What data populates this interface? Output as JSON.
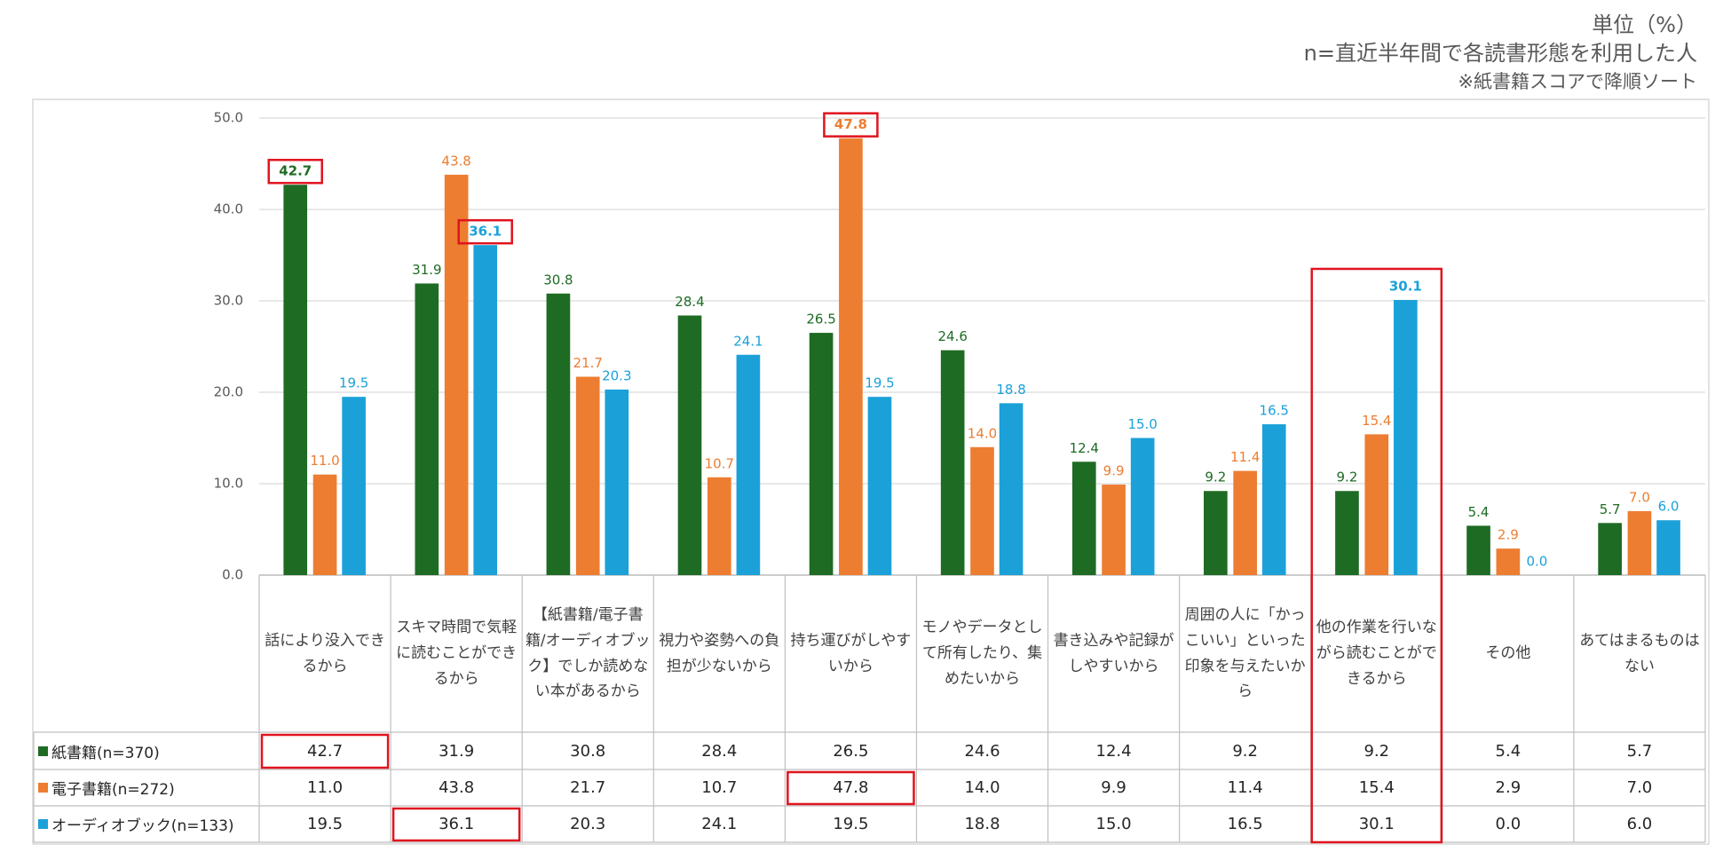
{
  "notes": [
    "単位（%）",
    "n=直近半年間で各読書形態を利用した人",
    "※紙書籍スコアで降順ソート"
  ],
  "chart_data": {
    "type": "bar",
    "categories": [
      "話により没入できるから",
      "スキマ時間で気軽に読むことができるから",
      "【紙書籍/電子書籍/オーディオブック】でしか読めない本があるから",
      "視力や姿勢への負担が少ないから",
      "持ち運びがしやすいから",
      "モノやデータとして所有したり、集めたいから",
      "書き込みや記録がしやすいから",
      "周囲の人に「かっこいい」といった印象を与えたいから",
      "他の作業を行いながら読むことができるから",
      "その他",
      "あてはまるものはない"
    ],
    "series": [
      {
        "name": "紙書籍(n=370)",
        "color": "#1e6b24",
        "values": [
          42.7,
          31.9,
          30.8,
          28.4,
          26.5,
          24.6,
          12.4,
          9.2,
          9.2,
          5.4,
          5.7
        ],
        "value_labels": [
          "42.7",
          "31.9",
          "30.8",
          "28.4",
          "26.5",
          "24.6",
          "12.4",
          "9.2",
          "9.2",
          "5.4",
          "5.7"
        ]
      },
      {
        "name": "電子書籍(n=272)",
        "color": "#ed7d31",
        "values": [
          11.0,
          43.8,
          21.7,
          10.7,
          47.8,
          14.0,
          9.9,
          11.4,
          15.4,
          2.9,
          7.0
        ],
        "value_labels": [
          "11.0",
          "43.8",
          "21.7",
          "10.7",
          "47.8",
          "14.0",
          "9.9",
          "11.4",
          "15.4",
          "2.9",
          "7.0"
        ]
      },
      {
        "name": "オーディオブック(n=133)",
        "color": "#1ba1d8",
        "values": [
          19.5,
          36.1,
          20.3,
          24.1,
          19.5,
          18.8,
          15.0,
          16.5,
          30.1,
          0.0,
          6.0
        ],
        "value_labels": [
          "19.5",
          "36.1",
          "20.3",
          "24.1",
          "19.5",
          "18.8",
          "15.0",
          "16.5",
          "30.1",
          "0.0",
          "6.0"
        ]
      }
    ],
    "ylim": [
      0,
      50
    ],
    "yticks": [
      {
        "value": 0,
        "label": "0.0"
      },
      {
        "value": 10,
        "label": "10.0"
      },
      {
        "value": 20,
        "label": "20.0"
      },
      {
        "value": 30,
        "label": "30.0"
      },
      {
        "value": 40,
        "label": "40.0"
      },
      {
        "value": 50,
        "label": "50.0"
      }
    ],
    "grid": true,
    "highlight_color": "#e0141e",
    "highlight_cells": [
      [
        0,
        0
      ],
      [
        1,
        4
      ],
      [
        2,
        1
      ]
    ],
    "highlight_category": 8
  }
}
